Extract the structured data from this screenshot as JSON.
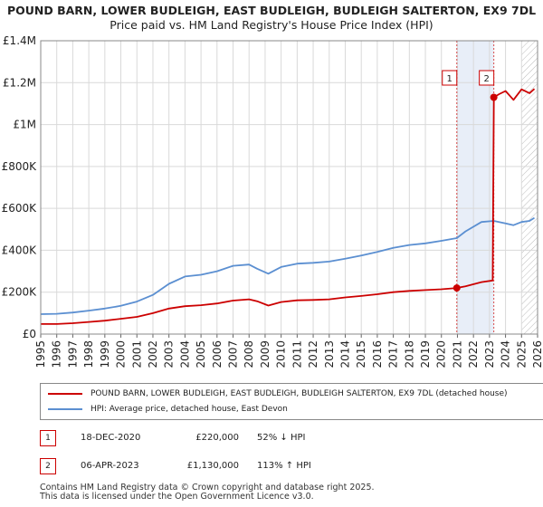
{
  "colors": {
    "property": "#cc0000",
    "hpi": "#5b8fd1",
    "grid": "#d9d9d9",
    "sale_band": "#e8eef8",
    "marker_line": "#cc0000"
  },
  "chart_data": {
    "type": "line",
    "title": "POUND BARN, LOWER BUDLEIGH, EAST BUDLEIGH, BUDLEIGH SALTERTON, EX9 7DL",
    "subtitle": "Price paid vs. HM Land Registry's House Price Index (HPI)",
    "xlim": [
      1995,
      2026
    ],
    "ylim": [
      0,
      1400000
    ],
    "x_ticks": [
      "1995",
      "1996",
      "1997",
      "1998",
      "1999",
      "2000",
      "2001",
      "2002",
      "2003",
      "2004",
      "2005",
      "2006",
      "2007",
      "2008",
      "2009",
      "2010",
      "2011",
      "2012",
      "2013",
      "2014",
      "2015",
      "2016",
      "2017",
      "2018",
      "2019",
      "2020",
      "2021",
      "2022",
      "2023",
      "2024",
      "2025",
      "2026"
    ],
    "y_ticks": [
      {
        "value": 0,
        "label": "£0"
      },
      {
        "value": 200000,
        "label": "£200K"
      },
      {
        "value": 400000,
        "label": "£400K"
      },
      {
        "value": 600000,
        "label": "£600K"
      },
      {
        "value": 800000,
        "label": "£800K"
      },
      {
        "value": 1000000,
        "label": "£1M"
      },
      {
        "value": 1200000,
        "label": "£1.2M"
      },
      {
        "value": 1400000,
        "label": "£1.4M"
      }
    ],
    "forecast_start": 2025.0,
    "sale_band": [
      2020.96,
      2023.27
    ],
    "series": [
      {
        "name": "POUND BARN, LOWER BUDLEIGH, EAST BUDLEIGH, BUDLEIGH SALTERTON, EX9 7DL (detached house)",
        "color": "#cc0000",
        "points": [
          [
            1995,
            48000
          ],
          [
            1996,
            48000
          ],
          [
            1997,
            52000
          ],
          [
            1998,
            58000
          ],
          [
            1999,
            64000
          ],
          [
            2000,
            73000
          ],
          [
            2001,
            82000
          ],
          [
            2002,
            100000
          ],
          [
            2003,
            122000
          ],
          [
            2004,
            133000
          ],
          [
            2005,
            138000
          ],
          [
            2006,
            146000
          ],
          [
            2007,
            160000
          ],
          [
            2008,
            166000
          ],
          [
            2008.5,
            157000
          ],
          [
            2009.2,
            136000
          ],
          [
            2010,
            153000
          ],
          [
            2011,
            161000
          ],
          [
            2012,
            163000
          ],
          [
            2013,
            166000
          ],
          [
            2014,
            175000
          ],
          [
            2015,
            182000
          ],
          [
            2016,
            190000
          ],
          [
            2017,
            200000
          ],
          [
            2018,
            206000
          ],
          [
            2019,
            210000
          ],
          [
            2020,
            214000
          ],
          [
            2020.96,
            220000
          ],
          [
            2021.5,
            228000
          ],
          [
            2022.5,
            248000
          ],
          [
            2023.2,
            256000
          ],
          [
            2023.27,
            1130000
          ],
          [
            2023.6,
            1145000
          ],
          [
            2024,
            1160000
          ],
          [
            2024.5,
            1118000
          ],
          [
            2025,
            1168000
          ],
          [
            2025.5,
            1150000
          ],
          [
            2025.8,
            1170000
          ]
        ]
      },
      {
        "name": "HPI: Average price, detached house, East Devon",
        "color": "#5b8fd1",
        "points": [
          [
            1995,
            95000
          ],
          [
            1996,
            97000
          ],
          [
            1997,
            103000
          ],
          [
            1998,
            112000
          ],
          [
            1999,
            122000
          ],
          [
            2000,
            135000
          ],
          [
            2001,
            155000
          ],
          [
            2002,
            187000
          ],
          [
            2003,
            240000
          ],
          [
            2004,
            275000
          ],
          [
            2005,
            283000
          ],
          [
            2006,
            300000
          ],
          [
            2007,
            326000
          ],
          [
            2008,
            332000
          ],
          [
            2008.5,
            312000
          ],
          [
            2009.2,
            288000
          ],
          [
            2010,
            320000
          ],
          [
            2011,
            336000
          ],
          [
            2012,
            340000
          ],
          [
            2013,
            346000
          ],
          [
            2014,
            360000
          ],
          [
            2015,
            375000
          ],
          [
            2016,
            392000
          ],
          [
            2017,
            412000
          ],
          [
            2018,
            425000
          ],
          [
            2019,
            433000
          ],
          [
            2020,
            445000
          ],
          [
            2020.96,
            458000
          ],
          [
            2021.5,
            490000
          ],
          [
            2022.5,
            535000
          ],
          [
            2023.27,
            540000
          ],
          [
            2023.6,
            535000
          ],
          [
            2024,
            528000
          ],
          [
            2024.5,
            520000
          ],
          [
            2025,
            535000
          ],
          [
            2025.5,
            540000
          ],
          [
            2025.8,
            555000
          ]
        ]
      }
    ],
    "sales": [
      {
        "id": "1",
        "x": 2020.96,
        "price": 220000
      },
      {
        "id": "2",
        "x": 2023.27,
        "price": 1130000
      }
    ]
  },
  "legend": {
    "property_label": "POUND BARN, LOWER BUDLEIGH, EAST BUDLEIGH, BUDLEIGH SALTERTON, EX9 7DL (detached house)",
    "hpi_label": "HPI: Average price, detached house, East Devon"
  },
  "sales_table": [
    {
      "id": "1",
      "date": "18-DEC-2020",
      "price": "£220,000",
      "hpi": "52% ↓ HPI"
    },
    {
      "id": "2",
      "date": "06-APR-2023",
      "price": "£1,130,000",
      "hpi": "113% ↑ HPI"
    }
  ],
  "footer": {
    "line1": "Contains HM Land Registry data © Crown copyright and database right 2025.",
    "line2": "This data is licensed under the Open Government Licence v3.0."
  }
}
